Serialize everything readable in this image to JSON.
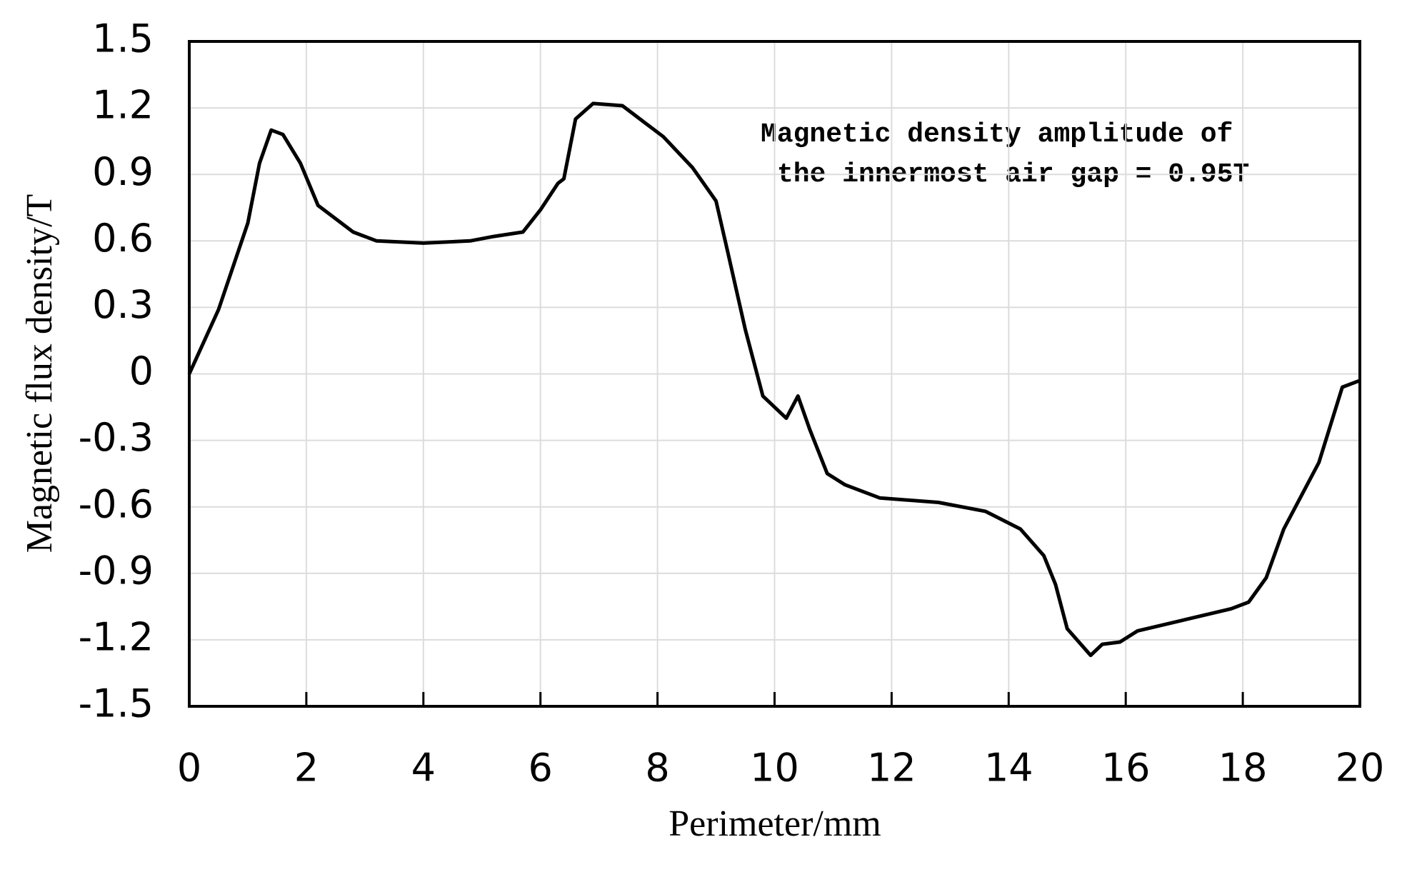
{
  "chart_data": {
    "type": "line",
    "x_label": "Perimeter/mm",
    "y_label": "Magnetic flux density/T",
    "annotation": [
      "Magnetic density amplitude of",
      "the innermost air gap = 0.95T"
    ],
    "color": "#000000",
    "grid": true,
    "xlim": [
      0,
      20
    ],
    "xticks": [
      0,
      2,
      4,
      6,
      8,
      10,
      12,
      14,
      16,
      18,
      20
    ],
    "ylim": [
      -1.5,
      1.5
    ],
    "yticks": [
      -1.5,
      -1.2,
      -0.9,
      -0.6,
      -0.3,
      0,
      0.3,
      0.6,
      0.9,
      1.2,
      1.5
    ],
    "x": [
      0,
      0.5,
      1.0,
      1.2,
      1.4,
      1.6,
      1.9,
      2.2,
      2.5,
      2.8,
      3.2,
      4.0,
      4.8,
      5.2,
      5.7,
      6.0,
      6.3,
      6.4,
      6.6,
      6.9,
      7.4,
      7.8,
      8.1,
      8.6,
      9.0,
      9.2,
      9.5,
      9.8,
      10.0,
      10.2,
      10.4,
      10.6,
      10.9,
      11.2,
      11.8,
      12.8,
      13.6,
      14.2,
      14.6,
      14.8,
      15.0,
      15.4,
      15.6,
      15.9,
      16.2,
      17.0,
      17.8,
      18.1,
      18.4,
      18.7,
      19.0,
      19.3,
      19.7,
      20.0
    ],
    "values": [
      0,
      0.29,
      0.68,
      0.95,
      1.1,
      1.08,
      0.95,
      0.76,
      0.7,
      0.64,
      0.6,
      0.59,
      0.6,
      0.62,
      0.64,
      0.74,
      0.86,
      0.88,
      1.15,
      1.22,
      1.21,
      1.13,
      1.07,
      0.93,
      0.78,
      0.55,
      0.2,
      -0.1,
      -0.15,
      -0.2,
      -0.1,
      -0.25,
      -0.45,
      -0.5,
      -0.56,
      -0.58,
      -0.62,
      -0.7,
      -0.82,
      -0.95,
      -1.15,
      -1.27,
      -1.22,
      -1.21,
      -1.16,
      -1.11,
      -1.06,
      -1.03,
      -0.92,
      -0.7,
      -0.55,
      -0.4,
      -0.06,
      -0.03
    ]
  }
}
